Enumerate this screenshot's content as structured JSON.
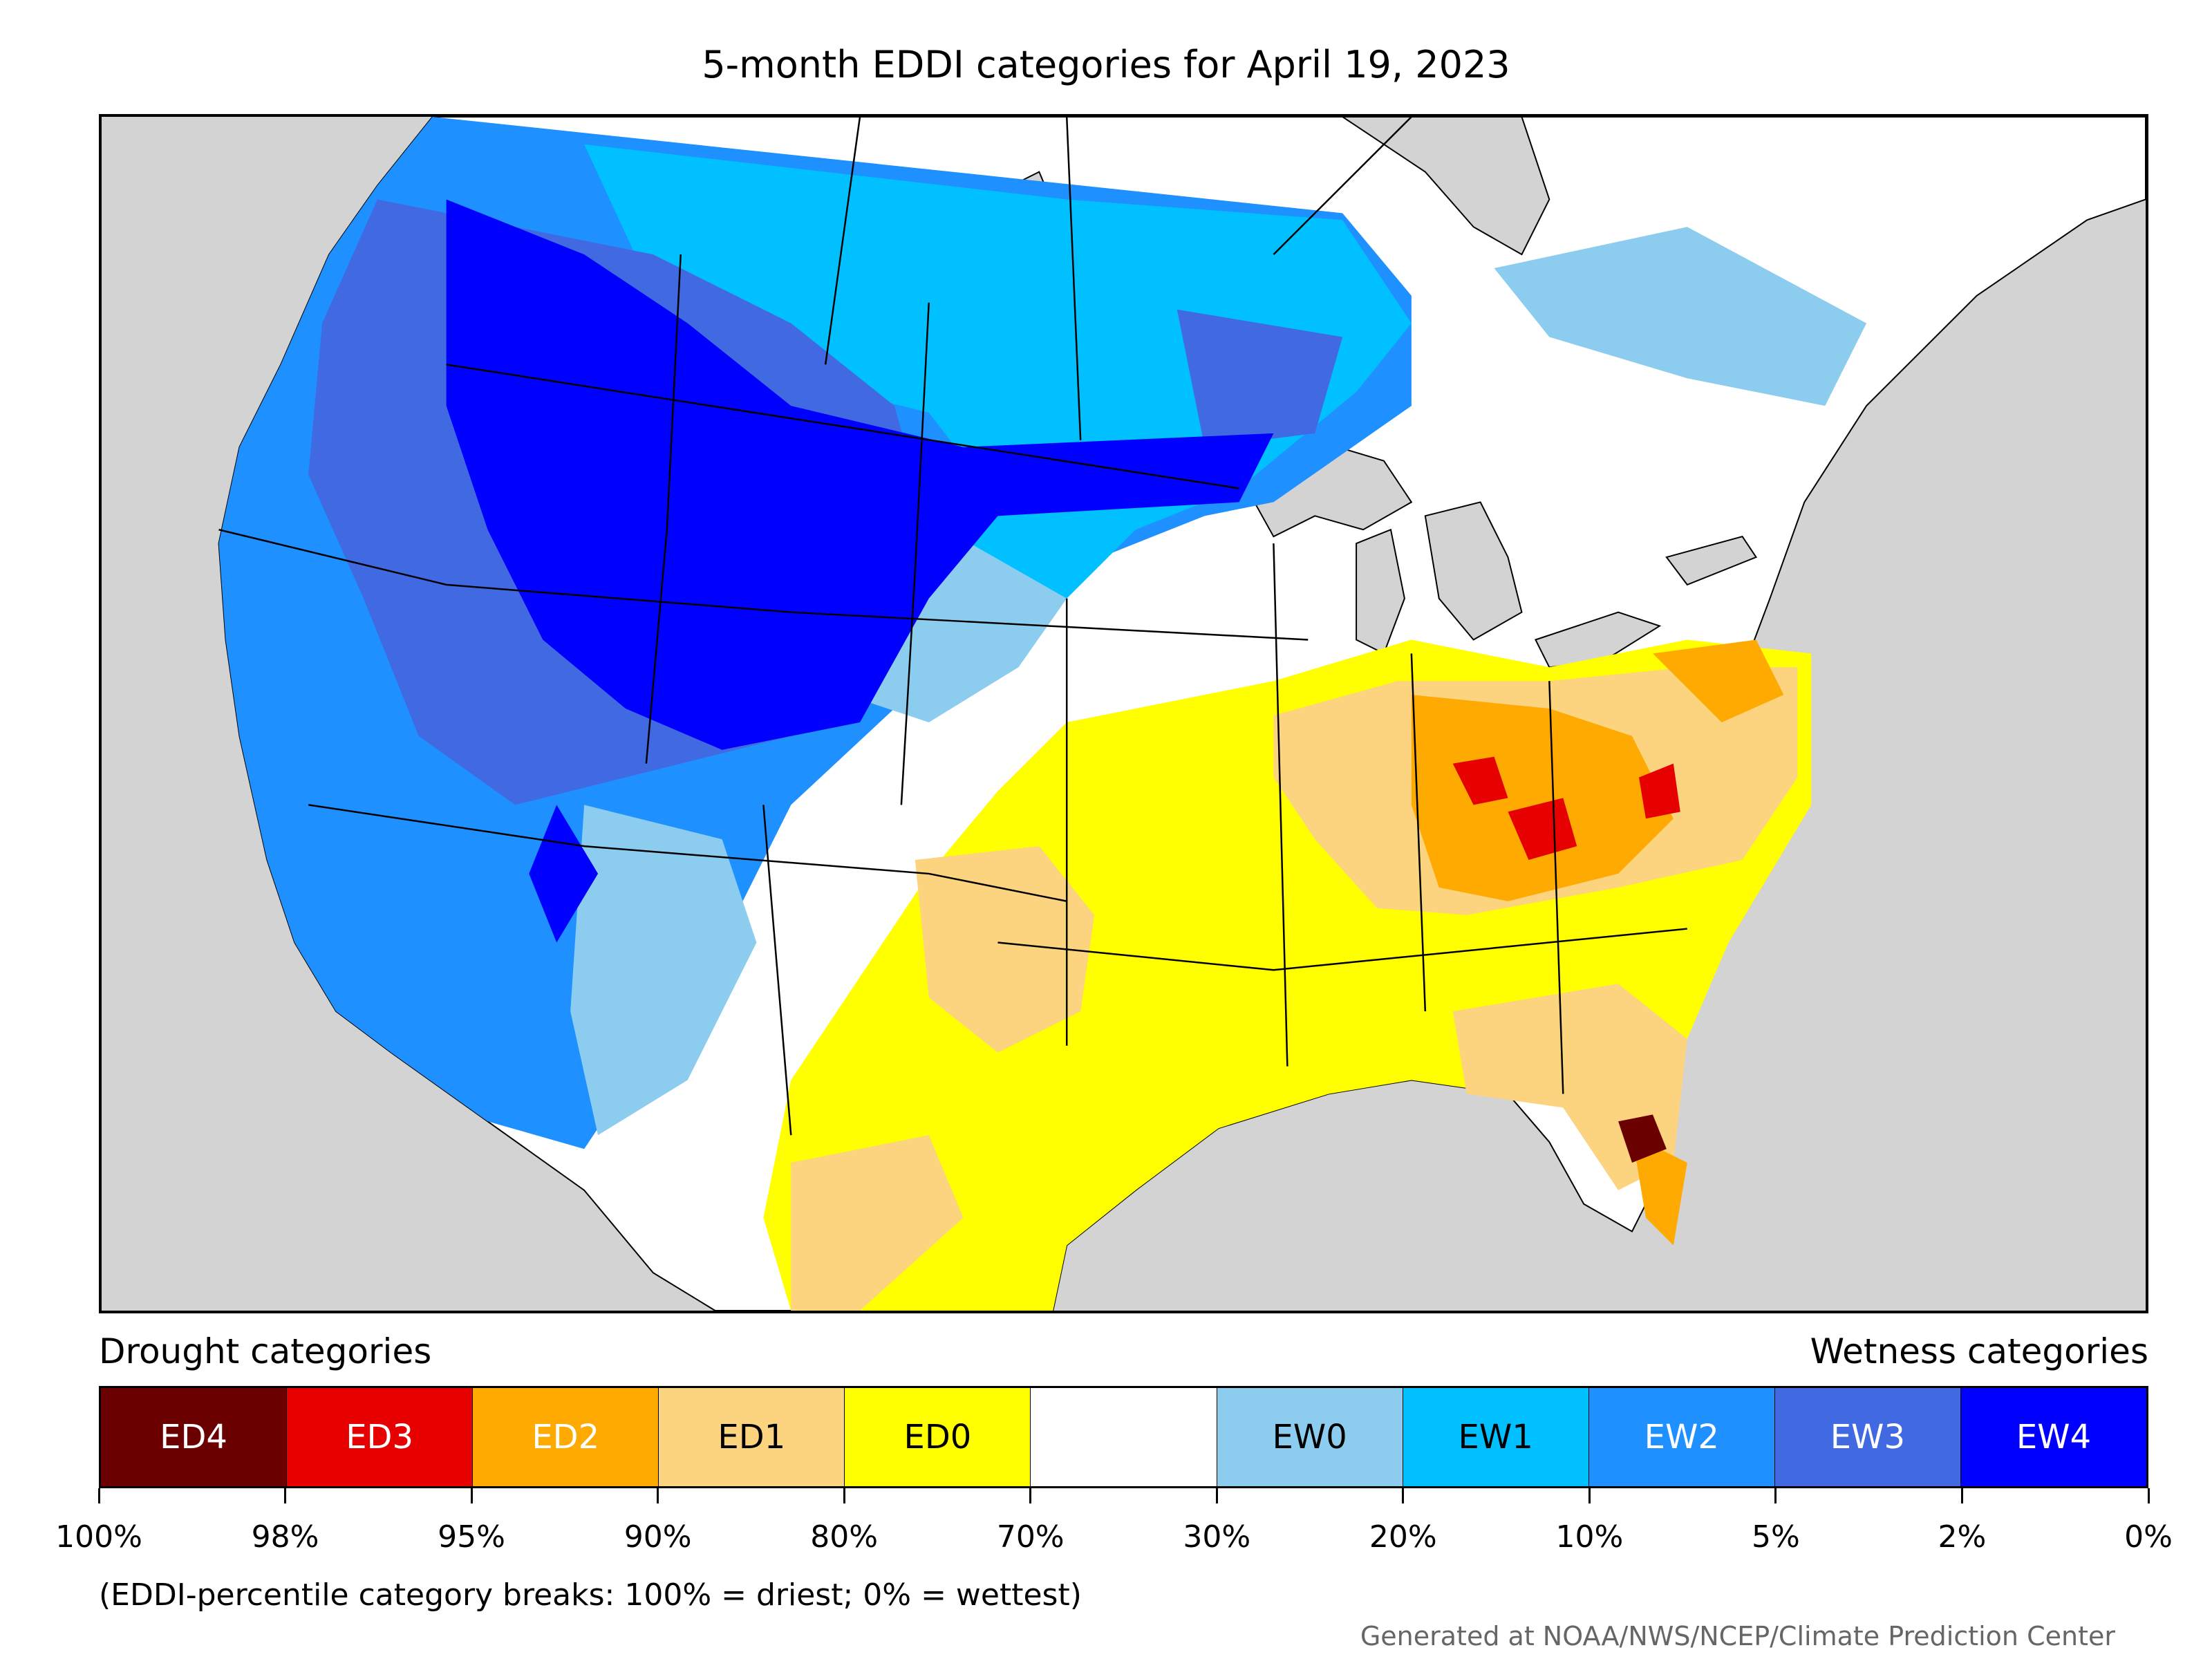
{
  "title": "5-month EDDI categories for April 19, 2023",
  "legend": {
    "drought_heading": "Drought categories",
    "wetness_heading": "Wetness categories",
    "categories": [
      {
        "label": "ED4",
        "color": "#6b0000",
        "text_color": "#ffffff"
      },
      {
        "label": "ED3",
        "color": "#e60000",
        "text_color": "#ffffff"
      },
      {
        "label": "ED2",
        "color": "#ffaa00",
        "text_color": "#ffffff"
      },
      {
        "label": "ED1",
        "color": "#fcd37f",
        "text_color": "#000000"
      },
      {
        "label": "ED0",
        "color": "#ffff00",
        "text_color": "#000000"
      },
      {
        "label": "",
        "color": "#ffffff",
        "text_color": "#000000"
      },
      {
        "label": "EW0",
        "color": "#8ccdef",
        "text_color": "#000000"
      },
      {
        "label": "EW1",
        "color": "#00c0ff",
        "text_color": "#000000"
      },
      {
        "label": "EW2",
        "color": "#1e90ff",
        "text_color": "#ffffff"
      },
      {
        "label": "EW3",
        "color": "#4169e1",
        "text_color": "#ffffff"
      },
      {
        "label": "EW4",
        "color": "#0000ff",
        "text_color": "#ffffff"
      }
    ],
    "tick_labels": [
      "100%",
      "98%",
      "95%",
      "90%",
      "80%",
      "70%",
      "30%",
      "20%",
      "10%",
      "5%",
      "2%",
      "0%"
    ]
  },
  "note": "(EDDI-percentile category breaks: 100% = driest; 0% = wettest)",
  "credit": "Generated at NOAA/NWS/NCEP/Climate Prediction Center",
  "colors": {
    "ocean": "#d3d3d3",
    "no_data": "#ffffff",
    "lakes": "#d3d3d3",
    "boundaries": "#000000"
  }
}
